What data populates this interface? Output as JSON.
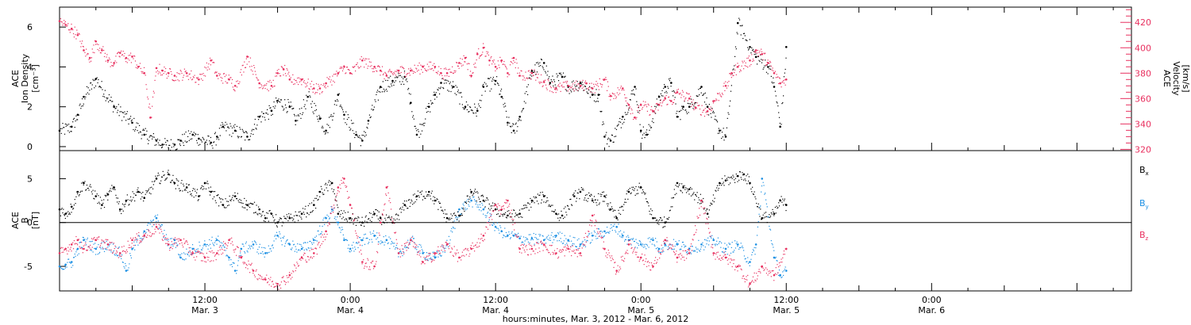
{
  "chart_data": [
    {
      "type": "scatter",
      "panel": "top",
      "ylabel": "ACE Ion Density [cm⁻³]",
      "ylabel_lines": [
        "ACE",
        "Ion Density",
        "[cm⁻³]"
      ],
      "ylim": [
        -0.2,
        7.0
      ],
      "yticks": [
        0,
        2,
        4,
        6
      ],
      "ytick_labels": [
        "0",
        "2",
        "4",
        "6"
      ],
      "y2label": "ACE Velocity [km/s]",
      "y2label_lines": [
        "ACE",
        "Velocity",
        "[km/s]"
      ],
      "y2lim": [
        319,
        432
      ],
      "y2ticks": [
        320,
        340,
        360,
        380,
        400,
        420
      ],
      "y2tick_labels": [
        "320",
        "340",
        "360",
        "380",
        "400",
        "420"
      ],
      "series": [
        {
          "color": "#000000",
          "axis": "left",
          "x": [
            0,
            2,
            3,
            4,
            6,
            9,
            12,
            14,
            16,
            17,
            19,
            20,
            22,
            23,
            25,
            26,
            27,
            29,
            31,
            33,
            35,
            36,
            38,
            39,
            41,
            43,
            44,
            46,
            47,
            49,
            50,
            51,
            53,
            55,
            57,
            58,
            59,
            61,
            62,
            63,
            65,
            67,
            69,
            70,
            72,
            73,
            74,
            75,
            76,
            78,
            80,
            81,
            83,
            84,
            86,
            88,
            89,
            90,
            91,
            93,
            95,
            96,
            97,
            99,
            100,
            101,
            102,
            103,
            104,
            106,
            107,
            109,
            110,
            112,
            114,
            115,
            117,
            118,
            119,
            120
          ],
          "y": [
            0.8,
            1.0,
            1.6,
            2.5,
            3.4,
            2.0,
            1.2,
            0.6,
            0.3,
            0.1,
            0.1,
            0.3,
            0.6,
            0.4,
            0.2,
            0.5,
            1.0,
            0.8,
            0.5,
            1.5,
            1.8,
            2.3,
            2.0,
            1.3,
            2.5,
            1.4,
            0.8,
            2.6,
            1.6,
            0.6,
            0.3,
            1.3,
            3.0,
            3.3,
            3.5,
            2.2,
            0.6,
            2.0,
            2.6,
            3.2,
            3.0,
            2.0,
            1.8,
            3.0,
            3.3,
            2.5,
            1.2,
            0.8,
            1.5,
            3.8,
            4.2,
            3.2,
            3.5,
            3.0,
            3.2,
            2.6,
            2.6,
            0.5,
            0.3,
            1.5,
            3.0,
            0.8,
            0.6,
            2.5,
            3.0,
            3.2,
            1.5,
            2.0,
            2.0,
            3.0,
            2.0,
            0.8,
            0.5,
            6.2,
            5.0,
            4.5,
            4.0,
            3.0,
            1.0,
            5.0
          ]
        },
        {
          "color": "#e8305f",
          "axis": "right",
          "x": [
            0,
            1,
            2,
            3,
            4,
            5,
            6,
            7,
            8,
            9,
            10,
            11,
            12,
            13,
            14,
            15,
            16,
            17,
            18,
            19,
            21,
            23,
            25,
            26,
            28,
            29,
            31,
            33,
            35,
            36,
            37,
            38,
            40,
            42,
            43,
            44,
            46,
            47,
            48,
            50,
            52,
            53,
            54,
            56,
            58,
            60,
            62,
            63,
            64,
            66,
            67,
            68,
            69,
            70,
            71,
            72,
            73,
            74,
            75,
            76,
            78,
            80,
            82,
            84,
            86,
            87,
            88,
            90,
            91,
            93,
            94,
            95,
            96,
            98,
            99,
            100,
            101,
            102,
            104,
            105,
            107,
            108,
            110,
            111,
            112,
            114,
            115,
            116,
            117,
            118,
            119,
            120
          ],
          "y": [
            421,
            418,
            415,
            410,
            398,
            392,
            405,
            398,
            390,
            388,
            396,
            392,
            393,
            385,
            380,
            345,
            384,
            382,
            380,
            378,
            380,
            375,
            390,
            378,
            375,
            370,
            393,
            372,
            370,
            380,
            383,
            375,
            375,
            368,
            368,
            372,
            380,
            385,
            380,
            390,
            385,
            382,
            378,
            382,
            382,
            385,
            385,
            380,
            380,
            388,
            392,
            378,
            395,
            400,
            390,
            385,
            390,
            380,
            392,
            378,
            380,
            373,
            368,
            370,
            370,
            372,
            368,
            375,
            362,
            368,
            355,
            345,
            355,
            350,
            355,
            360,
            358,
            365,
            360,
            353,
            350,
            358,
            370,
            380,
            385,
            390,
            398,
            395,
            388,
            380,
            372,
            375
          ]
        }
      ]
    },
    {
      "type": "scatter",
      "panel": "bottom",
      "ylabel": "ACE B [nT]",
      "ylabel_lines": [
        "ACE",
        "B",
        "[nT]"
      ],
      "ylim": [
        -7.8,
        8.2
      ],
      "yticks": [
        -5,
        0,
        5
      ],
      "ytick_labels": [
        "-5",
        "0",
        "5"
      ],
      "zero_line": true,
      "series": [
        {
          "name": "Bx",
          "color": "#000000",
          "x": [
            0,
            1,
            2,
            3,
            4,
            6,
            7,
            8,
            9,
            10,
            11,
            13,
            14,
            16,
            18,
            19,
            21,
            23,
            24,
            25,
            27,
            29,
            31,
            33,
            34,
            35,
            36,
            38,
            40,
            42,
            43,
            45,
            46,
            48,
            50,
            52,
            53,
            55,
            57,
            59,
            61,
            62,
            64,
            66,
            68,
            70,
            72,
            74,
            76,
            78,
            80,
            82,
            83,
            85,
            86,
            88,
            90,
            91,
            92,
            94,
            96,
            98,
            100,
            102,
            103,
            104,
            106,
            107,
            109,
            110,
            112,
            113,
            114,
            116,
            118,
            119,
            120
          ],
          "y": [
            1.5,
            1.0,
            1.8,
            3.5,
            4.5,
            3.0,
            2.0,
            3.2,
            4.0,
            1.5,
            2.5,
            3.5,
            2.8,
            5.0,
            5.5,
            4.5,
            4.0,
            3.0,
            4.5,
            3.5,
            2.0,
            3.0,
            2.0,
            1.5,
            0.5,
            1.0,
            0.0,
            0.5,
            1.0,
            2.0,
            3.5,
            4.5,
            1.0,
            0.5,
            0.0,
            1.0,
            0.5,
            0.0,
            2.0,
            3.0,
            3.5,
            2.5,
            0.5,
            0.8,
            3.5,
            2.5,
            1.5,
            0.8,
            1.0,
            2.5,
            3.0,
            1.0,
            0.8,
            3.0,
            3.5,
            2.5,
            3.0,
            1.5,
            0.5,
            3.5,
            4.0,
            0.5,
            0.0,
            4.5,
            4.0,
            3.8,
            2.5,
            1.0,
            4.5,
            4.8,
            5.3,
            5.5,
            4.5,
            0.5,
            1.0,
            2.5,
            2.0
          ]
        },
        {
          "name": "By",
          "color": "#1a8fe3",
          "x": [
            0,
            1,
            2,
            3,
            4,
            6,
            8,
            10,
            11,
            12,
            14,
            16,
            18,
            19,
            20,
            22,
            24,
            26,
            28,
            29,
            30,
            32,
            34,
            36,
            38,
            40,
            42,
            44,
            45,
            46,
            47,
            48,
            50,
            52,
            54,
            56,
            58,
            60,
            62,
            64,
            66,
            68,
            70,
            72,
            73,
            74,
            75,
            76,
            78,
            80,
            82,
            84,
            86,
            88,
            90,
            92,
            93,
            94,
            96,
            98,
            99,
            100,
            102,
            104,
            106,
            108,
            110,
            112,
            114,
            115,
            116,
            118,
            119,
            120
          ],
          "y": [
            -5.0,
            -4.8,
            -4.5,
            -3.0,
            -2.0,
            -3.0,
            -2.5,
            -3.5,
            -5.5,
            -3.0,
            -1.0,
            0.5,
            -2.5,
            -2.0,
            -4.0,
            -3.0,
            -2.5,
            -2.0,
            -4.0,
            -5.5,
            -3.0,
            -2.5,
            -3.5,
            -1.5,
            -2.5,
            -3.0,
            -2.0,
            0.5,
            1.5,
            0.0,
            -2.0,
            -3.0,
            -2.0,
            -1.5,
            -2.0,
            -3.5,
            -2.0,
            -3.5,
            -4.0,
            -2.5,
            1.5,
            2.5,
            1.5,
            -0.5,
            -1.0,
            -1.5,
            -1.5,
            -1.8,
            -1.8,
            -2.0,
            -1.5,
            -2.0,
            -2.5,
            -1.5,
            -1.0,
            -0.5,
            -1.5,
            -2.0,
            -2.5,
            -2.0,
            -3.0,
            -2.5,
            -2.5,
            -3.0,
            -2.5,
            -2.0,
            -3.0,
            -2.5,
            -4.5,
            -2.5,
            5.0,
            -4.0,
            -6.0,
            -5.5
          ]
        },
        {
          "name": "Bz",
          "color": "#e8305f",
          "x": [
            0,
            1,
            2,
            3,
            4,
            6,
            8,
            10,
            12,
            14,
            16,
            18,
            20,
            22,
            24,
            26,
            28,
            30,
            32,
            34,
            36,
            38,
            40,
            42,
            44,
            46,
            47,
            48,
            50,
            52,
            53,
            54,
            56,
            58,
            60,
            62,
            64,
            66,
            68,
            70,
            72,
            73,
            74,
            76,
            78,
            80,
            82,
            84,
            86,
            88,
            90,
            92,
            94,
            96,
            98,
            100,
            102,
            104,
            106,
            108,
            110,
            112,
            114,
            116,
            118,
            120
          ],
          "y": [
            -3.5,
            -3.0,
            -2.5,
            -2.0,
            -3.0,
            -2.0,
            -2.5,
            -3.5,
            -2.0,
            -1.5,
            -0.5,
            -2.5,
            -2.0,
            -3.5,
            -4.0,
            -3.5,
            -2.0,
            -4.0,
            -5.5,
            -6.5,
            -7.0,
            -6.0,
            -4.0,
            -3.5,
            -1.0,
            4.0,
            5.0,
            2.0,
            -4.5,
            -5.0,
            0.0,
            4.0,
            -3.5,
            -2.0,
            -4.5,
            -3.5,
            -2.5,
            -4.0,
            -3.0,
            -1.5,
            2.0,
            1.5,
            2.5,
            -3.0,
            -3.0,
            -2.5,
            -3.5,
            -3.0,
            -3.5,
            0.8,
            -3.0,
            -5.5,
            -2.5,
            -4.0,
            -5.0,
            -2.0,
            -4.0,
            -3.5,
            2.5,
            -3.5,
            -4.0,
            -5.0,
            -7.0,
            -5.0,
            -6.0,
            -3.0
          ]
        }
      ]
    }
  ],
  "xaxis": {
    "xlim": [
      0,
      177
    ],
    "major_ticks": [
      12,
      36,
      60,
      84,
      108
    ],
    "tick_labels": [
      {
        "time": "12:00",
        "date": "Mar. 3"
      },
      {
        "time": "0:00",
        "date": "Mar. 4"
      },
      {
        "time": "12:00",
        "date": "Mar. 4"
      },
      {
        "time": "0:00",
        "date": "Mar. 5"
      },
      {
        "time": "12:00",
        "date": "Mar. 5"
      },
      {
        "time": "0:00",
        "date": "Mar. 6"
      }
    ],
    "tick_label_positions": [
      24,
      48,
      72,
      96,
      120,
      144
    ],
    "label": "hours:minutes, Mar.  3, 2012 - Mar.  6, 2012"
  },
  "legend": {
    "placement": "right",
    "entries": [
      {
        "label": "B",
        "subscript": "x",
        "color": "#000000"
      },
      {
        "label": "B",
        "subscript": "y",
        "color": "#1a8fe3"
      },
      {
        "label": "B",
        "subscript": "z",
        "color": "#e8305f"
      }
    ]
  }
}
